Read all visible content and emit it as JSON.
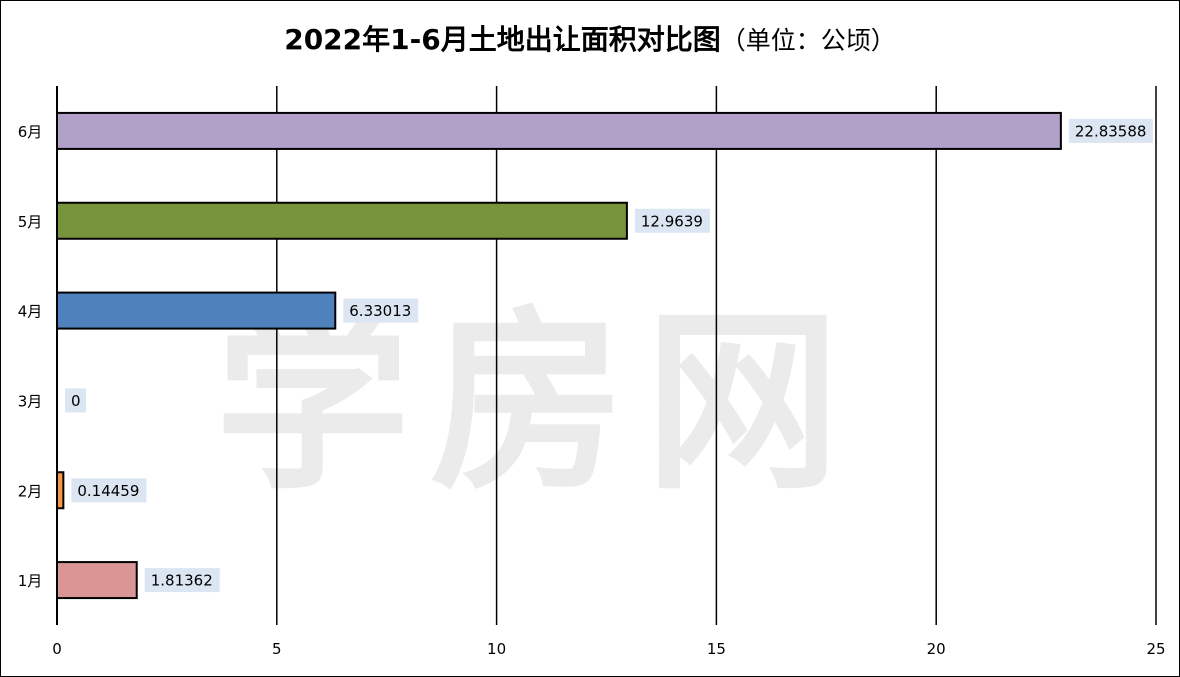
{
  "chart_data": {
    "type": "bar",
    "orientation": "horizontal",
    "title": "2022年1-6月土地出让面积对比图",
    "title_suffix": "（单位：公顷）",
    "categories": [
      "1月",
      "2月",
      "3月",
      "4月",
      "5月",
      "6月"
    ],
    "values": [
      1.81362,
      0.14459,
      0,
      6.33013,
      12.9639,
      22.83588
    ],
    "value_labels": [
      "1.81362",
      "0.14459",
      "0",
      "6.33013",
      "12.9639",
      "22.83588"
    ],
    "colors": [
      "#da9694",
      "#f79646",
      "#f79646",
      "#4f81bd",
      "#77933c",
      "#b1a0c7"
    ],
    "xlim": [
      0,
      25
    ],
    "xticks": [
      0,
      5,
      10,
      15,
      20,
      25
    ],
    "grid": "vertical",
    "legend": "none"
  },
  "watermark": "学房网"
}
